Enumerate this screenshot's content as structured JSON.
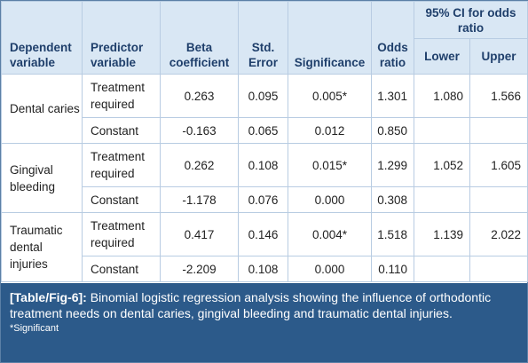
{
  "headers": {
    "dependent": "Dependent variable",
    "predictor": "Predictor variable",
    "beta": "Beta coefficient",
    "std_error": "Std. Error",
    "significance": "Significance",
    "odds": "Odds ratio",
    "ci": "95% CI for odds ratio",
    "lower": "Lower",
    "upper": "Upper"
  },
  "groups": [
    {
      "dependent": "Dental caries",
      "rows": [
        {
          "predictor": "Treatment required",
          "beta": "0.263",
          "se": "0.095",
          "sig": "0.005*",
          "odds": "1.301",
          "lower": "1.080",
          "upper": "1.566"
        },
        {
          "predictor": "Constant",
          "beta": "-0.163",
          "se": "0.065",
          "sig": "0.012",
          "odds": "0.850",
          "lower": "",
          "upper": ""
        }
      ]
    },
    {
      "dependent": "Gingival bleeding",
      "rows": [
        {
          "predictor": "Treatment required",
          "beta": "0.262",
          "se": "0.108",
          "sig": "0.015*",
          "odds": "1.299",
          "lower": "1.052",
          "upper": "1.605"
        },
        {
          "predictor": "Constant",
          "beta": "-1.178",
          "se": "0.076",
          "sig": "0.000",
          "odds": "0.308",
          "lower": "",
          "upper": ""
        }
      ]
    },
    {
      "dependent": "Traumatic dental injuries",
      "rows": [
        {
          "predictor": "Treatment required",
          "beta": "0.417",
          "se": "0.146",
          "sig": "0.004*",
          "odds": "1.518",
          "lower": "1.139",
          "upper": "2.022"
        },
        {
          "predictor": "Constant",
          "beta": "-2.209",
          "se": "0.108",
          "sig": "0.000",
          "odds": "0.110",
          "lower": "",
          "upper": ""
        }
      ]
    }
  ],
  "caption": {
    "label": "[Table/Fig-6]:",
    "text": " Binomial logistic regression analysis showing the influence of orthodontic treatment needs on dental caries, gingival bleeding and traumatic dental injuries.",
    "note": "*Significant"
  },
  "colors": {
    "header_bg": "#d9e7f4",
    "header_text": "#1f3f6b",
    "caption_bg": "#2c5a8a",
    "border": "#b8cce2"
  }
}
